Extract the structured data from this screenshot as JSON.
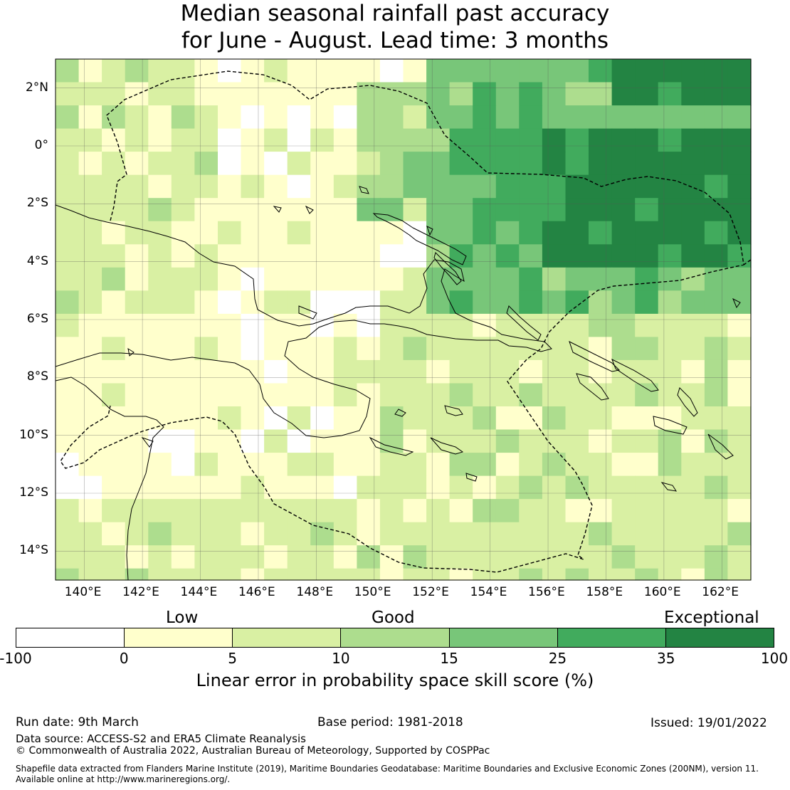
{
  "title": {
    "line1": "Median seasonal rainfall past accuracy",
    "line2": "for June - August. Lead time: 3 months"
  },
  "map": {
    "lon_range": [
      139,
      163
    ],
    "lat_range": [
      -15,
      3
    ],
    "lon_ticks": [
      "140°E",
      "142°E",
      "144°E",
      "146°E",
      "148°E",
      "150°E",
      "152°E",
      "154°E",
      "156°E",
      "158°E",
      "160°E",
      "162°E"
    ],
    "lat_ticks": [
      "2°N",
      "0°",
      "2°S",
      "4°S",
      "6°S",
      "8°S",
      "10°S",
      "12°S",
      "14°S"
    ],
    "features": [
      "coastlines",
      "maritime-boundaries-eez",
      "skill-score-grid"
    ]
  },
  "colorbar": {
    "categories": [
      "Low",
      "Good",
      "Exceptional"
    ],
    "ticks": [
      "-100",
      "0",
      "5",
      "10",
      "15",
      "25",
      "35",
      "100"
    ],
    "colors": [
      "#ffffff",
      "#ffffcc",
      "#d9f0a3",
      "#addd8e",
      "#78c679",
      "#41ab5d",
      "#238443"
    ],
    "label": "Linear error in probability space skill score (%)"
  },
  "footer": {
    "run_date": "Run date: 9th March",
    "base_period": "Base period: 1981-2018",
    "issued": "Issued: 19/01/2022",
    "data_source": "Data source: ACCESS-S2 and ERA5 Climate Reanalysis",
    "copyright": "© Commonwealth of Australia 2022, Australian Bureau of Meteorology, Supported by COSPPac",
    "shapefile1": "Shapefile data extracted from Flanders Marine Institute (2019), Maritime Boundaries Geodatabase: Maritime Boundaries and Exclusive Economic Zones (200NM), version 11.",
    "shapefile2": "Available online at http://www.marineregions.org/."
  }
}
